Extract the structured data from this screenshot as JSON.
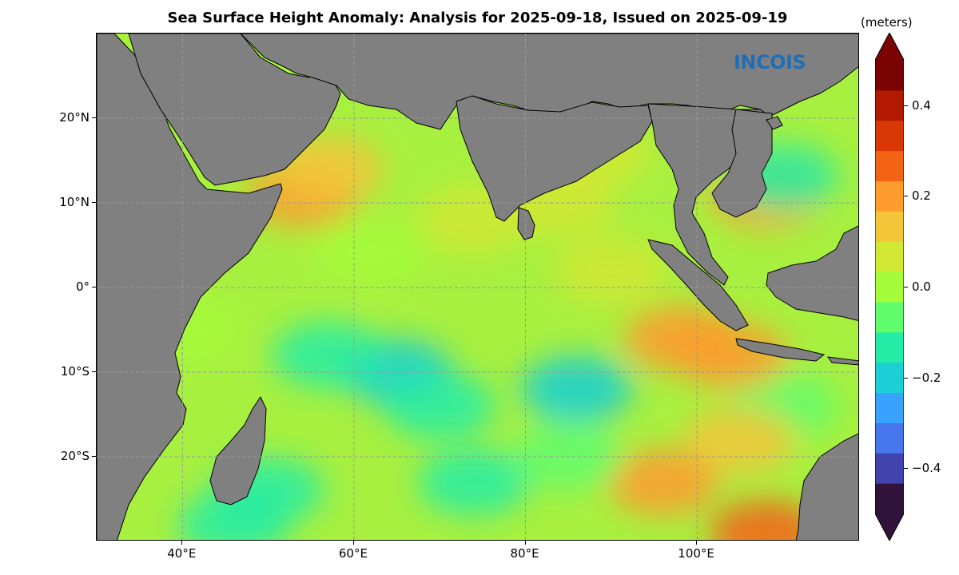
{
  "title": "Sea Surface Height Anomaly: Analysis for 2025-09-18, Issued on 2025-09-19",
  "logo_text": "INCOIS",
  "map": {
    "lon_range": [
      30,
      119
    ],
    "lat_range": [
      -30,
      30
    ],
    "projection": "plate-carree",
    "land_color": "#808080",
    "coastline_color": "#000000",
    "gridlines": true,
    "x_ticks": [
      {
        "lon": 40,
        "label": "40°E"
      },
      {
        "lon": 60,
        "label": "60°E"
      },
      {
        "lon": 80,
        "label": "80°E"
      },
      {
        "lon": 100,
        "label": "100°E"
      }
    ],
    "y_ticks": [
      {
        "lat": 20,
        "label": "20°N"
      },
      {
        "lat": 10,
        "label": "10°N"
      },
      {
        "lat": 0,
        "label": "0°"
      },
      {
        "lat": -10,
        "label": "10°S"
      },
      {
        "lat": -20,
        "label": "20°S"
      }
    ],
    "anomaly_regions": [
      {
        "lon": 65,
        "lat": -10,
        "value": -0.2
      },
      {
        "lon": 57,
        "lat": -8,
        "value": -0.15
      },
      {
        "lon": 86,
        "lat": -12,
        "value": -0.18
      },
      {
        "lon": 74,
        "lat": -23,
        "value": -0.17
      },
      {
        "lon": 50,
        "lat": -24,
        "value": -0.12
      },
      {
        "lon": 46,
        "lat": -28,
        "value": -0.15
      },
      {
        "lon": 110,
        "lat": -14,
        "value": -0.1
      },
      {
        "lon": 70,
        "lat": -14,
        "value": -0.12
      },
      {
        "lon": 98,
        "lat": -6,
        "value": 0.22
      },
      {
        "lon": 104,
        "lat": -8,
        "value": 0.2
      },
      {
        "lon": 96,
        "lat": -23,
        "value": 0.2
      },
      {
        "lon": 54,
        "lat": 11,
        "value": 0.2
      },
      {
        "lon": 57,
        "lat": 14,
        "value": 0.15
      },
      {
        "lon": 108,
        "lat": 11,
        "value": 0.18
      },
      {
        "lon": 108,
        "lat": -29,
        "value": 0.25
      },
      {
        "lon": 88,
        "lat": 16,
        "value": 0.1
      },
      {
        "lon": 84,
        "lat": 10,
        "value": 0.1
      },
      {
        "lon": 74,
        "lat": 8,
        "value": 0.08
      },
      {
        "lon": 110,
        "lat": 13,
        "value": -0.12
      },
      {
        "lon": 105,
        "lat": -18,
        "value": 0.12
      },
      {
        "lon": 85,
        "lat": -20,
        "value": -0.05
      },
      {
        "lon": 40,
        "lat": -5,
        "value": 0.02
      },
      {
        "lon": 62,
        "lat": 4,
        "value": 0.0
      },
      {
        "lon": 90,
        "lat": 2,
        "value": 0.05
      }
    ]
  },
  "colorbar": {
    "units": "(meters)",
    "range": [
      -0.5,
      0.5
    ],
    "extend": "both",
    "ticks": [
      {
        "value": 0.4,
        "label": "0.4"
      },
      {
        "value": 0.2,
        "label": "0.2"
      },
      {
        "value": 0.0,
        "label": "0.0"
      },
      {
        "value": -0.2,
        "label": "−0.2"
      },
      {
        "value": -0.4,
        "label": "−0.4"
      }
    ],
    "colors": [
      "#30123b",
      "#4145ab",
      "#4675ed",
      "#39a2fc",
      "#1bcfd4",
      "#24eca6",
      "#61fc6c",
      "#a4fc3b",
      "#d1e834",
      "#f3c63a",
      "#fe9b2d",
      "#f36315",
      "#d93806",
      "#b11901",
      "#7a0403"
    ]
  }
}
